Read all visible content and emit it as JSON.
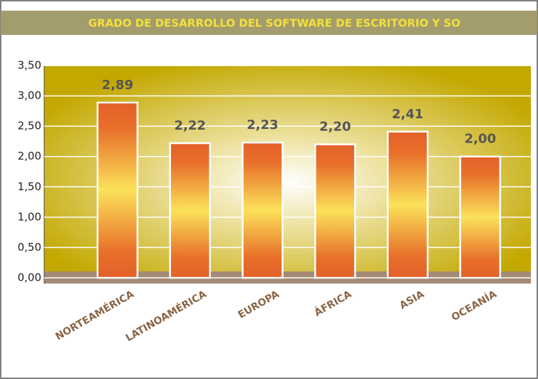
{
  "chart_data": {
    "type": "bar",
    "title": "GRADO DE DESARROLLO DEL SOFTWARE DE  ESCRITORIO Y SO",
    "categories": [
      "NORTEAMÉRICA",
      "LATINOAMÉRICA",
      "EUROPA",
      "ÁFRICA",
      "ASIA",
      "OCEANÍA"
    ],
    "values": [
      2.89,
      2.22,
      2.23,
      2.2,
      2.41,
      2.0
    ],
    "value_labels": [
      "2,89",
      "2,22",
      "2,23",
      "2,20",
      "2,41",
      "2,00"
    ],
    "color": "#e8672a",
    "ylim": [
      0,
      3.5
    ],
    "yticks": [
      {
        "value": 0,
        "label": "0,00"
      },
      {
        "value": 0.5,
        "label": "0,50"
      },
      {
        "value": 1,
        "label": "1,00"
      },
      {
        "value": 1.5,
        "label": "1,50"
      },
      {
        "value": 2,
        "label": "2,00"
      },
      {
        "value": 2.5,
        "label": "2,50"
      },
      {
        "value": 3,
        "label": "3,00"
      },
      {
        "value": 3.5,
        "label": "3,50"
      }
    ],
    "grid": true
  }
}
